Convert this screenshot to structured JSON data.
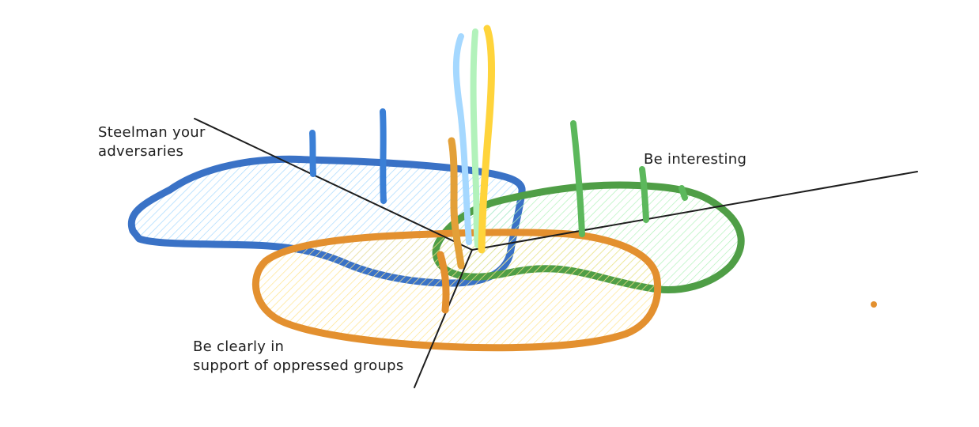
{
  "labels": {
    "steelman": [
      "Steelman your",
      "adversaries"
    ],
    "interesting": [
      "Be interesting"
    ],
    "support": [
      "Be clearly in",
      "support of oppressed groups"
    ]
  },
  "colors": {
    "axis": "#1e1e1e",
    "blue_region": "#3a72c6",
    "blue_fill": "#a5d8ff",
    "green_region": "#4f9e46",
    "green_fill": "#b2f2bb",
    "orange_region": "#e3902f",
    "orange_fill": "#ffec99",
    "light_blue_stem": "#a5d8ff",
    "light_green_stem": "#b2f2bb",
    "yellow_stem": "#ffd43b",
    "blue_stem": "#3a7fd6",
    "green_stem": "#5cb85c",
    "orange_stem": "#e3a038",
    "dot": "#e3902f"
  }
}
